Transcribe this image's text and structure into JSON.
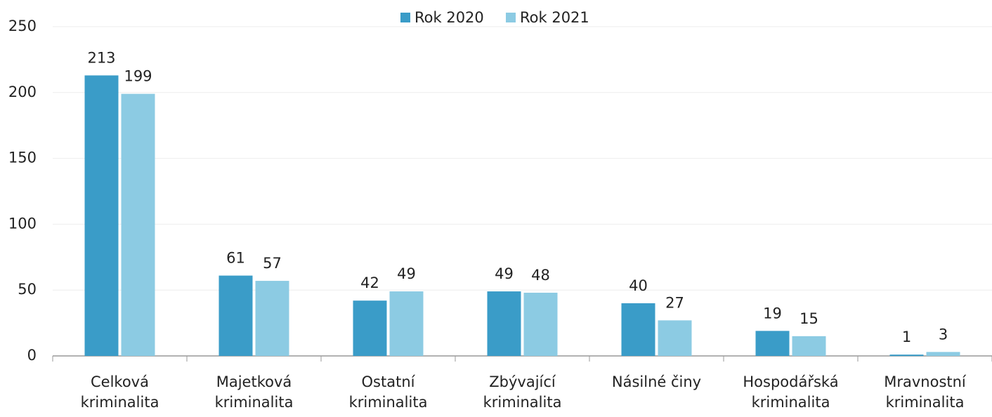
{
  "chart_data": {
    "type": "bar",
    "categories": [
      "Celková kriminalita",
      "Majetková kriminalita",
      "Ostatní kriminalita",
      "Zbývající kriminalita",
      "Násilné činy",
      "Hospodářská kriminalita",
      "Mravnostní kriminalita"
    ],
    "series": [
      {
        "name": "Rok 2020",
        "color": "#3a9cc8",
        "values": [
          213,
          61,
          42,
          49,
          40,
          19,
          1
        ]
      },
      {
        "name": "Rok 2021",
        "color": "#8ccbe3",
        "values": [
          199,
          57,
          49,
          48,
          27,
          15,
          3
        ]
      }
    ],
    "ylim": [
      0,
      250
    ],
    "yticks": [
      0,
      50,
      100,
      150,
      200,
      250
    ],
    "grid": true,
    "legend": "top"
  }
}
